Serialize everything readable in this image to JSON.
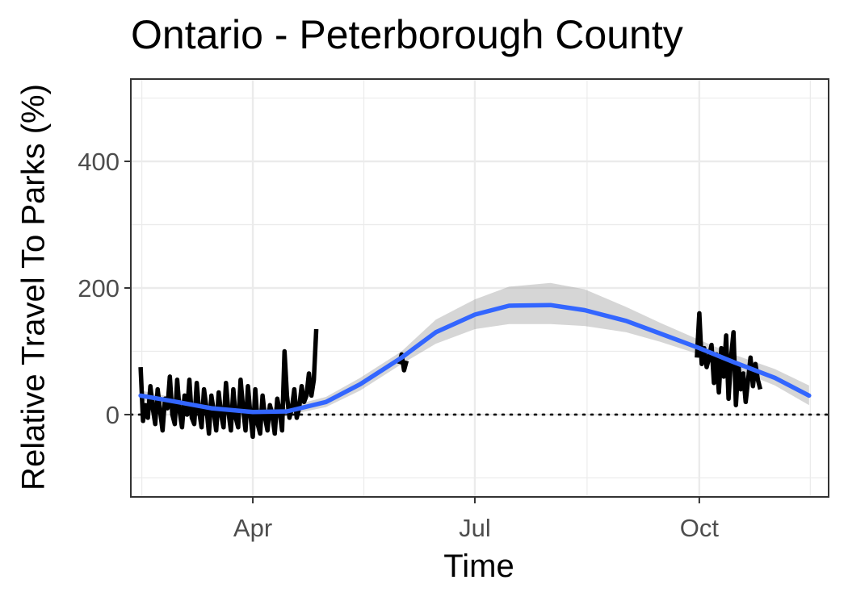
{
  "chart_data": {
    "type": "line",
    "title": "Ontario - Peterborough County",
    "xlabel": "Time",
    "ylabel": "Relative Travel To Parks (%)",
    "x_axis": {
      "type": "date",
      "range": [
        "2020-02-11",
        "2020-11-23"
      ],
      "ticks": [
        {
          "date": "2020-04-01",
          "label": "Apr"
        },
        {
          "date": "2020-07-01",
          "label": "Jul"
        },
        {
          "date": "2020-10-01",
          "label": "Oct"
        }
      ]
    },
    "y_axis": {
      "range": [
        -130,
        530
      ],
      "ticks": [
        0,
        200,
        400
      ],
      "tick_labels": [
        "0",
        "200",
        "400"
      ]
    },
    "grid": true,
    "reference_line": {
      "y": 0,
      "style": "dotted"
    },
    "series": [
      {
        "kind": "daily observations",
        "color": "#000000",
        "segments": [
          {
            "start": "2020-02-15",
            "values": [
              75,
              -10,
              15,
              -5,
              45,
              10,
              -15,
              40,
              5,
              -25,
              25,
              10,
              60,
              0,
              -15,
              55,
              5,
              -20,
              30,
              0,
              55,
              -5,
              -15,
              50,
              5,
              -20,
              40,
              10,
              -30,
              30,
              5,
              -25,
              35,
              0,
              -20,
              50,
              5,
              -25,
              40,
              -5,
              -20,
              55,
              10,
              -25,
              45,
              0,
              -35,
              40,
              -15,
              -30,
              30,
              -5,
              -25,
              15,
              0,
              -30,
              25,
              5,
              -25,
              100,
              30,
              -5,
              10,
              40,
              -5,
              10,
              45,
              20,
              30,
              65,
              30,
              55,
              135
            ]
          },
          {
            "start": "2020-05-31",
            "values": [
              80,
              95,
              70,
              85
            ]
          },
          {
            "start": "2020-09-30",
            "values": [
              90,
              160,
              80,
              105,
              75,
              90,
              110,
              50,
              95,
              35,
              105,
              60,
              125,
              25,
              90,
              130,
              15,
              80,
              40,
              65,
              20,
              55,
              90,
              45,
              80,
              55,
              40
            ]
          }
        ]
      },
      {
        "kind": "smoothed trend",
        "color": "#3366FF",
        "band_color": "#999999",
        "x": [
          "2020-02-15",
          "2020-03-01",
          "2020-03-15",
          "2020-04-01",
          "2020-04-15",
          "2020-05-01",
          "2020-05-15",
          "2020-06-01",
          "2020-06-15",
          "2020-07-01",
          "2020-07-15",
          "2020-08-01",
          "2020-08-15",
          "2020-09-01",
          "2020-09-15",
          "2020-10-01",
          "2020-10-15",
          "2020-11-01",
          "2020-11-15"
        ],
        "y": [
          30,
          20,
          10,
          4,
          5,
          20,
          48,
          90,
          130,
          158,
          172,
          173,
          165,
          148,
          128,
          105,
          83,
          58,
          30
        ],
        "lower": [
          22,
          14,
          4,
          -2,
          -1,
          12,
          38,
          80,
          112,
          135,
          143,
          143,
          140,
          130,
          115,
          95,
          73,
          46,
          15
        ],
        "upper": [
          38,
          26,
          16,
          10,
          12,
          28,
          58,
          100,
          150,
          182,
          202,
          208,
          198,
          170,
          145,
          118,
          95,
          72,
          46
        ]
      }
    ]
  }
}
